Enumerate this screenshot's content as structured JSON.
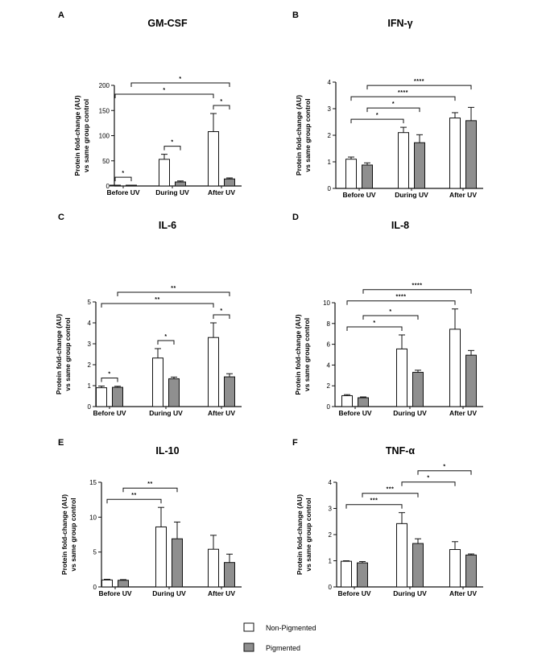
{
  "figure": {
    "categories": [
      "Before UV",
      "During UV",
      "After UV"
    ],
    "ylabel_line1": "Protein fold-change (AU)",
    "ylabel_line2": "vs same group control",
    "legend": [
      {
        "label": "Non-Pigmented",
        "color": "#ffffff"
      },
      {
        "label": "Pigmented",
        "color": "#8f8f8f"
      }
    ]
  },
  "chart_data": [
    {
      "panel": "A",
      "title": "GM-CSF",
      "type": "bar",
      "categories": [
        "Before UV",
        "During UV",
        "After UV"
      ],
      "ylim": [
        0,
        200
      ],
      "yticks": [
        0,
        50,
        100,
        150,
        200
      ],
      "series": [
        {
          "name": "Non-Pigmented",
          "values": [
            1,
            53,
            108
          ],
          "errors": [
            0.5,
            10,
            36
          ]
        },
        {
          "name": "Pigmented",
          "values": [
            1,
            8,
            14
          ],
          "errors": [
            0.5,
            2,
            2
          ]
        }
      ],
      "significance": [
        {
          "from": [
            0,
            0
          ],
          "to": [
            0,
            1
          ],
          "label": "*"
        },
        {
          "from": [
            1,
            0
          ],
          "to": [
            1,
            1
          ],
          "label": "*"
        },
        {
          "from": [
            2,
            0
          ],
          "to": [
            2,
            1
          ],
          "label": "*"
        },
        {
          "from": [
            0,
            0
          ],
          "to": [
            2,
            0
          ],
          "label": "*"
        },
        {
          "from": [
            0,
            1
          ],
          "to": [
            2,
            1
          ],
          "label": "*"
        }
      ]
    },
    {
      "panel": "B",
      "title": "IFN-γ",
      "type": "bar",
      "categories": [
        "Before UV",
        "During UV",
        "After UV"
      ],
      "ylim": [
        0,
        4
      ],
      "yticks": [
        0,
        1,
        2,
        3,
        4
      ],
      "series": [
        {
          "name": "Non-Pigmented",
          "values": [
            1.1,
            2.1,
            2.65
          ],
          "errors": [
            0.08,
            0.2,
            0.2
          ]
        },
        {
          "name": "Pigmented",
          "values": [
            0.88,
            1.72,
            2.55
          ],
          "errors": [
            0.08,
            0.3,
            0.5
          ]
        }
      ],
      "significance": [
        {
          "from": [
            0,
            0
          ],
          "to": [
            1,
            0
          ],
          "label": "*"
        },
        {
          "from": [
            0,
            1
          ],
          "to": [
            1,
            1
          ],
          "label": "*"
        },
        {
          "from": [
            0,
            0
          ],
          "to": [
            2,
            0
          ],
          "label": "****"
        },
        {
          "from": [
            0,
            1
          ],
          "to": [
            2,
            1
          ],
          "label": "****"
        }
      ]
    },
    {
      "panel": "C",
      "title": "IL-6",
      "type": "bar",
      "categories": [
        "Before UV",
        "During UV",
        "After UV"
      ],
      "ylim": [
        0,
        5
      ],
      "yticks": [
        0,
        1,
        2,
        3,
        4,
        5
      ],
      "series": [
        {
          "name": "Non-Pigmented",
          "values": [
            0.9,
            2.32,
            3.3
          ],
          "errors": [
            0.08,
            0.45,
            0.7
          ]
        },
        {
          "name": "Pigmented",
          "values": [
            0.92,
            1.33,
            1.42
          ],
          "errors": [
            0.05,
            0.08,
            0.15
          ]
        }
      ],
      "significance": [
        {
          "from": [
            0,
            0
          ],
          "to": [
            0,
            1
          ],
          "label": "*"
        },
        {
          "from": [
            1,
            0
          ],
          "to": [
            1,
            1
          ],
          "label": "*"
        },
        {
          "from": [
            2,
            0
          ],
          "to": [
            2,
            1
          ],
          "label": "*"
        },
        {
          "from": [
            0,
            0
          ],
          "to": [
            2,
            0
          ],
          "label": "**"
        },
        {
          "from": [
            0,
            1
          ],
          "to": [
            2,
            1
          ],
          "label": "**"
        }
      ]
    },
    {
      "panel": "D",
      "title": "IL-8",
      "type": "bar",
      "categories": [
        "Before UV",
        "During UV",
        "After UV"
      ],
      "ylim": [
        0,
        10
      ],
      "yticks": [
        0,
        2,
        4,
        6,
        8,
        10
      ],
      "series": [
        {
          "name": "Non-Pigmented",
          "values": [
            1.05,
            5.55,
            7.45
          ],
          "errors": [
            0.1,
            1.35,
            1.95
          ]
        },
        {
          "name": "Pigmented",
          "values": [
            0.85,
            3.3,
            4.95
          ],
          "errors": [
            0.08,
            0.2,
            0.45
          ]
        }
      ],
      "significance": [
        {
          "from": [
            0,
            0
          ],
          "to": [
            1,
            0
          ],
          "label": "*"
        },
        {
          "from": [
            0,
            1
          ],
          "to": [
            1,
            1
          ],
          "label": "*"
        },
        {
          "from": [
            0,
            0
          ],
          "to": [
            2,
            0
          ],
          "label": "****"
        },
        {
          "from": [
            0,
            1
          ],
          "to": [
            2,
            1
          ],
          "label": "****"
        }
      ]
    },
    {
      "panel": "E",
      "title": "IL-10",
      "type": "bar",
      "categories": [
        "Before UV",
        "During UV",
        "After UV"
      ],
      "ylim": [
        0,
        15
      ],
      "yticks": [
        0,
        5,
        10,
        15
      ],
      "series": [
        {
          "name": "Non-Pigmented",
          "values": [
            1,
            8.6,
            5.4
          ],
          "errors": [
            0.1,
            2.8,
            2
          ]
        },
        {
          "name": "Pigmented",
          "values": [
            0.95,
            6.9,
            3.5
          ],
          "errors": [
            0.1,
            2.4,
            1.2
          ]
        }
      ],
      "significance": [
        {
          "from": [
            0,
            0
          ],
          "to": [
            1,
            0
          ],
          "label": "**"
        },
        {
          "from": [
            0,
            1
          ],
          "to": [
            1,
            1
          ],
          "label": "**"
        }
      ]
    },
    {
      "panel": "F",
      "title": "TNF-α",
      "type": "bar",
      "categories": [
        "Before UV",
        "During UV",
        "After UV"
      ],
      "ylim": [
        0,
        4
      ],
      "yticks": [
        0,
        1,
        2,
        3,
        4
      ],
      "series": [
        {
          "name": "Non-Pigmented",
          "values": [
            0.98,
            2.42,
            1.43
          ],
          "errors": [
            0.02,
            0.42,
            0.3
          ]
        },
        {
          "name": "Pigmented",
          "values": [
            0.92,
            1.66,
            1.22
          ],
          "errors": [
            0.05,
            0.18,
            0.04
          ]
        }
      ],
      "significance": [
        {
          "from": [
            0,
            0
          ],
          "to": [
            1,
            0
          ],
          "label": "***"
        },
        {
          "from": [
            0,
            1
          ],
          "to": [
            1,
            1
          ],
          "label": "***"
        },
        {
          "from": [
            1,
            0
          ],
          "to": [
            2,
            0
          ],
          "label": "*"
        },
        {
          "from": [
            1,
            1
          ],
          "to": [
            2,
            1
          ],
          "label": "*"
        }
      ]
    }
  ]
}
